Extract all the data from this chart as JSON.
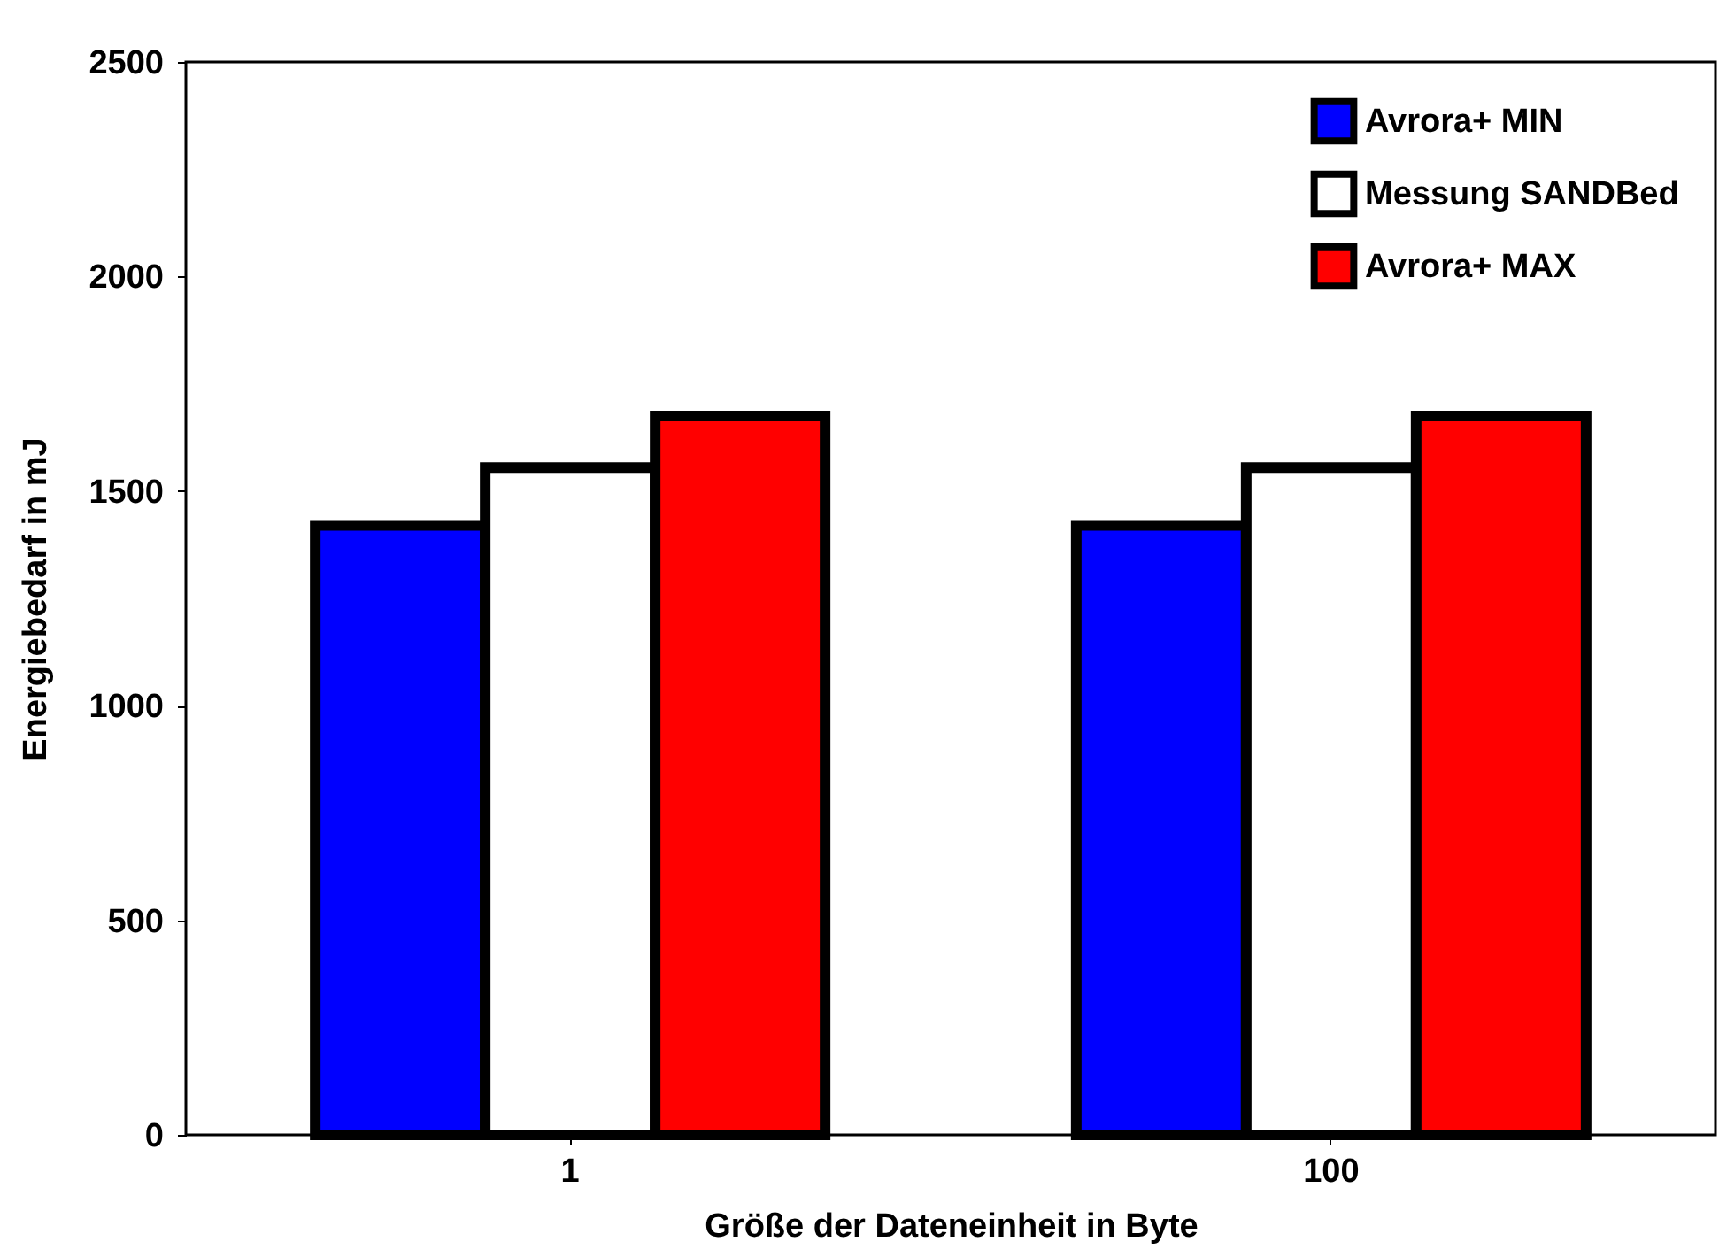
{
  "chart_data": {
    "type": "bar",
    "xlabel": "Größe der Dateneinheit in Byte",
    "ylabel": "Energiebedarf in mJ",
    "categories": [
      "1",
      "100"
    ],
    "series": [
      {
        "name": "Avrora+ MIN",
        "color": "#0000ff",
        "values": [
          1420,
          1420
        ]
      },
      {
        "name": "Messung SANDBed",
        "color": "#ffffff",
        "values": [
          1555,
          1555
        ]
      },
      {
        "name": "Avrora+ MAX",
        "color": "#ff0000",
        "values": [
          1675,
          1675
        ]
      }
    ],
    "ylim": [
      0,
      2500
    ],
    "yticks": [
      0,
      500,
      1000,
      1500,
      2000,
      2500
    ],
    "legend": "top right"
  }
}
